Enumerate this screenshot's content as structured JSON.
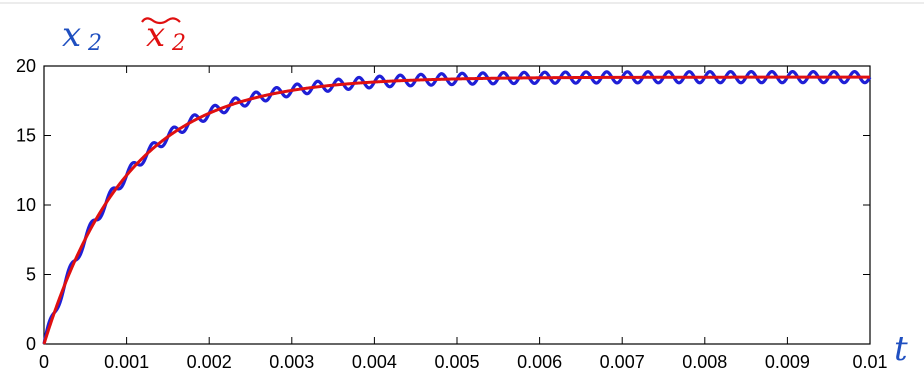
{
  "chart_data": {
    "type": "line",
    "title": "",
    "annotations": {
      "series_label_x2": "x",
      "series_label_x2_sub": "2",
      "series_label_x2hat": "x",
      "series_label_x2hat_sub": "2",
      "time_label": "t"
    },
    "xlabel": "",
    "ylabel": "",
    "xlim": [
      0,
      0.01
    ],
    "ylim": [
      0,
      20
    ],
    "x_ticks": [
      "0",
      "0.001",
      "0.002",
      "0.003",
      "0.004",
      "0.005",
      "0.006",
      "0.007",
      "0.008",
      "0.009",
      "0.01"
    ],
    "y_ticks": [
      "0",
      "5",
      "10",
      "15",
      "20"
    ],
    "grid": false,
    "model": {
      "steady_value": 19.2,
      "time_constant": 0.001,
      "ripple_amplitude": 0.4,
      "ripple_period": 0.00025
    },
    "series": [
      {
        "name": "x2",
        "color": "#1f1fd6",
        "style": "rippled"
      },
      {
        "name": "x2_avg",
        "color": "#e01010",
        "style": "smooth"
      }
    ]
  }
}
